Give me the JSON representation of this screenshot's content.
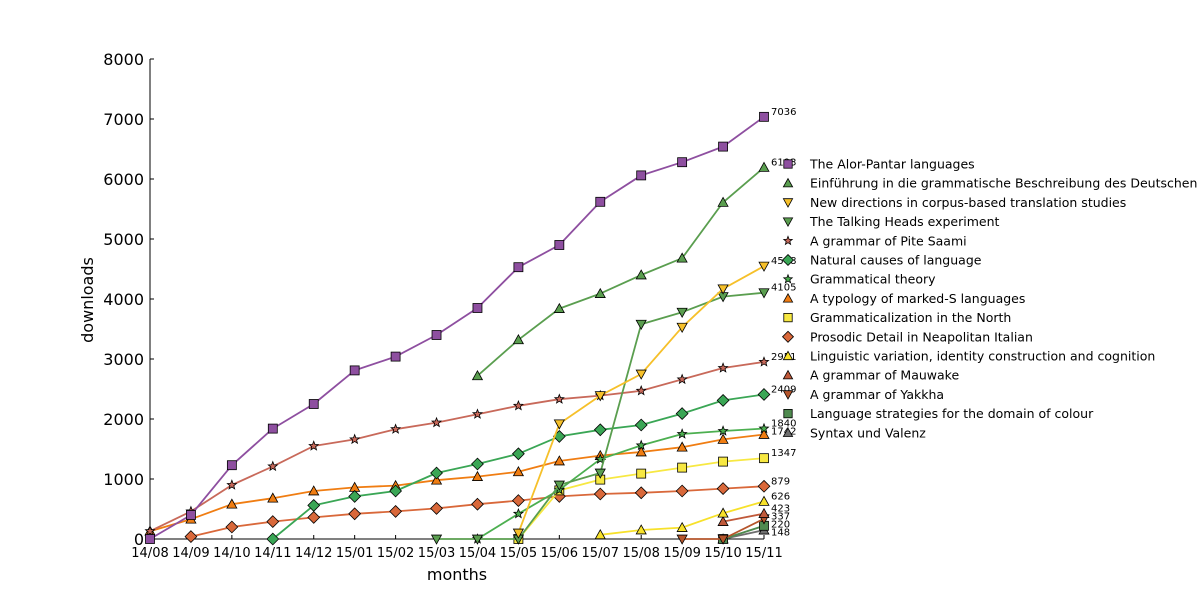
{
  "chart_data": {
    "type": "line",
    "xlabel": "months",
    "ylabel": "downloads",
    "ylim": [
      0,
      8000
    ],
    "yticks": [
      0,
      1000,
      2000,
      3000,
      4000,
      5000,
      6000,
      7000,
      8000
    ],
    "x": [
      "14/08",
      "14/09",
      "14/10",
      "14/11",
      "14/12",
      "15/01",
      "15/02",
      "15/03",
      "15/04",
      "15/05",
      "15/06",
      "15/07",
      "15/08",
      "15/09",
      "15/10",
      "15/11"
    ],
    "legend_position": "right",
    "grid": false,
    "series": [
      {
        "name": "The Alor-Pantar languages",
        "color": "#8e4fa0",
        "marker": "square",
        "values": [
          0,
          400,
          1230,
          1840,
          2250,
          2810,
          3040,
          3400,
          3850,
          4530,
          4900,
          5620,
          6060,
          6280,
          6540,
          7036
        ],
        "end_label": "7036"
      },
      {
        "name": "Einführung in die grammatische Beschreibung des Deutschen",
        "color": "#5a9e4f",
        "marker": "triangle-up",
        "values": [
          null,
          null,
          null,
          null,
          null,
          null,
          null,
          null,
          2720,
          3320,
          3840,
          4090,
          4400,
          4680,
          5610,
          6193
        ],
        "end_label": "6193"
      },
      {
        "name": "New directions in corpus-based translation studies",
        "color": "#f6c02a",
        "marker": "triangle-down",
        "values": [
          null,
          null,
          null,
          null,
          null,
          null,
          null,
          null,
          null,
          100,
          1920,
          2390,
          2750,
          3530,
          4170,
          4548
        ],
        "end_label": "4548"
      },
      {
        "name": "The Talking Heads experiment",
        "color": "#5a9e4f",
        "marker": "triangle-down",
        "values": [
          null,
          null,
          null,
          null,
          null,
          null,
          null,
          0,
          0,
          0,
          900,
          1100,
          3580,
          3780,
          4040,
          4105
        ],
        "end_label": "4105"
      },
      {
        "name": "A grammar of Pite Saami",
        "color": "#c8695a",
        "marker": "star",
        "values": [
          130,
          460,
          900,
          1210,
          1550,
          1660,
          1830,
          1940,
          2080,
          2220,
          2330,
          2390,
          2470,
          2660,
          2850,
          2951
        ],
        "end_label": "2951"
      },
      {
        "name": "Natural causes of language",
        "color": "#3aa655",
        "marker": "diamond",
        "values": [
          null,
          null,
          null,
          0,
          560,
          710,
          800,
          1100,
          1250,
          1420,
          1710,
          1820,
          1900,
          2090,
          2310,
          2409
        ],
        "end_label": "2409"
      },
      {
        "name": "Grammatical theory",
        "color": "#4caf50",
        "marker": "star",
        "values": [
          null,
          null,
          null,
          null,
          null,
          null,
          null,
          null,
          0,
          420,
          820,
          1330,
          1560,
          1750,
          1800,
          1840
        ],
        "end_label": "1840"
      },
      {
        "name": "A typology of marked-S languages",
        "color": "#f07d12",
        "marker": "triangle-up",
        "values": [
          130,
          330,
          580,
          680,
          800,
          860,
          890,
          980,
          1040,
          1120,
          1300,
          1390,
          1450,
          1530,
          1660,
          1742
        ],
        "end_label": "1742"
      },
      {
        "name": "Grammaticalization in the North",
        "color": "#f7e842",
        "marker": "square",
        "values": [
          null,
          null,
          null,
          null,
          null,
          null,
          null,
          null,
          null,
          0,
          810,
          990,
          1090,
          1190,
          1290,
          1347
        ],
        "end_label": "1347"
      },
      {
        "name": "Prosodic Detail in Neapolitan Italian",
        "color": "#d9683a",
        "marker": "diamond",
        "values": [
          null,
          40,
          200,
          290,
          360,
          420,
          460,
          510,
          580,
          640,
          710,
          750,
          770,
          800,
          840,
          879
        ],
        "end_label": "879"
      },
      {
        "name": "Linguistic variation, identity construction and cognition",
        "color": "#f7e12a",
        "marker": "triangle-up",
        "values": [
          null,
          null,
          null,
          null,
          null,
          null,
          null,
          null,
          null,
          null,
          null,
          70,
          150,
          190,
          430,
          626
        ],
        "end_label": "626"
      },
      {
        "name": "A grammar of Mauwake",
        "color": "#c0593a",
        "marker": "triangle-up",
        "values": [
          null,
          null,
          null,
          null,
          null,
          null,
          null,
          null,
          null,
          null,
          null,
          null,
          null,
          null,
          290,
          423
        ],
        "end_label": "423"
      },
      {
        "name": "A grammar of Yakkha",
        "color": "#b5552b",
        "marker": "triangle-down",
        "values": [
          null,
          null,
          null,
          null,
          null,
          null,
          null,
          null,
          null,
          null,
          null,
          null,
          null,
          0,
          0,
          337
        ],
        "end_label": "337"
      },
      {
        "name": "Language strategies for the domain of colour",
        "color": "#4f8a4f",
        "marker": "square",
        "values": [
          null,
          null,
          null,
          null,
          null,
          null,
          null,
          null,
          null,
          null,
          null,
          null,
          null,
          null,
          0,
          220
        ],
        "end_label": "220"
      },
      {
        "name": "Syntax und Valenz",
        "color": "#6f6f6f",
        "marker": "triangle-up",
        "values": [
          null,
          null,
          null,
          null,
          null,
          null,
          null,
          null,
          null,
          null,
          null,
          null,
          null,
          null,
          0,
          148
        ],
        "end_label": "148"
      }
    ]
  }
}
